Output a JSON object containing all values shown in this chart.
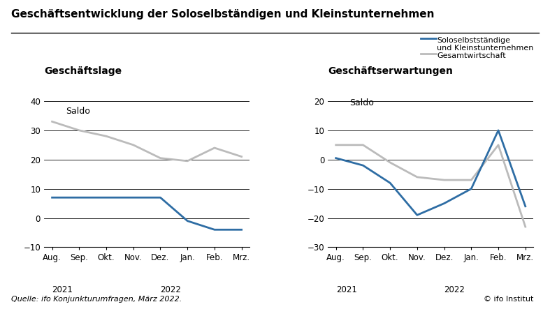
{
  "title": "Geschäftsentwicklung der Soloselbständigen und Kleinstunternehmen",
  "left_title": "Geschäftslage",
  "right_title": "Geschäftserwartungen",
  "saldo_label": "Saldo",
  "x_labels": [
    "Aug.",
    "Sep.",
    "Okt.",
    "Nov.",
    "Dez.",
    "Jan.",
    "Feb.",
    "Mrz."
  ],
  "left_blue": [
    7,
    7,
    7,
    7,
    7,
    -1,
    -4,
    -4
  ],
  "left_gray": [
    33,
    30,
    28,
    25,
    20.5,
    19.5,
    24,
    21
  ],
  "left_ylim": [
    -10,
    45
  ],
  "left_yticks": [
    -10,
    0,
    10,
    20,
    30,
    40
  ],
  "right_blue": [
    0.5,
    -2,
    -8,
    -19,
    -15,
    -10,
    10,
    -16
  ],
  "right_gray": [
    5,
    5,
    -1,
    -6,
    -7,
    -7,
    5,
    -23
  ],
  "right_ylim": [
    -30,
    25
  ],
  "right_yticks": [
    -30,
    -20,
    -10,
    0,
    10,
    20
  ],
  "blue_color": "#2e6da4",
  "gray_color": "#bbbbbb",
  "source_text": "Quelle: ifo Konjunkturumfragen, März 2022.",
  "copyright_text": "© ifo Institut",
  "legend_line1": "Soloselbstständige",
  "legend_line2": "und Kleinstunternehmen",
  "legend_gesamtwirtschaft": "Gesamtwirtschaft",
  "background_color": "#ffffff",
  "line_width": 2.0
}
